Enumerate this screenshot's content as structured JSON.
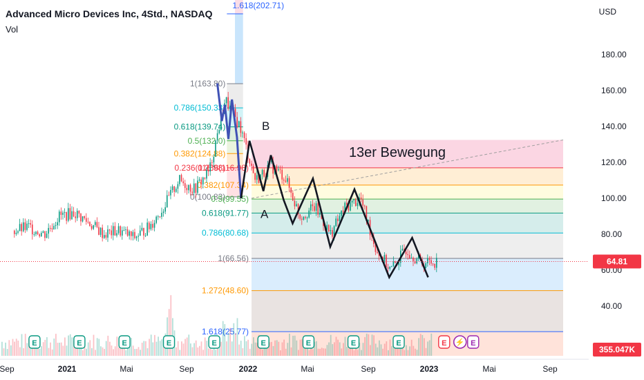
{
  "header": {
    "symbol_title": "Advanced Micro Devices Inc, 4Std., NASDAQ",
    "volume_label": "Vol",
    "currency": "USD"
  },
  "chart_data": {
    "type": "candlestick",
    "title": "Advanced Micro Devices Inc, 4Std., NASDAQ",
    "y_ticks": [
      40,
      60,
      80,
      100,
      120,
      140,
      160,
      180
    ],
    "y_tick_labels": [
      "40.00",
      "60.00",
      "80.00",
      "100.00",
      "120.00",
      "140.00",
      "160.00",
      "180.00"
    ],
    "x_tick_labels": [
      "Sep",
      "2021",
      "Mai",
      "Sep",
      "2022",
      "Mai",
      "Sep",
      "2023",
      "Mai",
      "Sep"
    ],
    "last_price": 64.81,
    "last_price_label": "64.81",
    "volume_label": "355.047K",
    "grid": false,
    "annotations": [
      "13er Bewegung",
      "A",
      "B"
    ],
    "price_path": [
      [
        "2020-09",
        82
      ],
      [
        "2020-10",
        84
      ],
      [
        "2020-11",
        80
      ],
      [
        "2020-12",
        90
      ],
      [
        "2021-01",
        92
      ],
      [
        "2021-02",
        86
      ],
      [
        "2021-03",
        80
      ],
      [
        "2021-04",
        82
      ],
      [
        "2021-05",
        78
      ],
      [
        "2021-06",
        84
      ],
      [
        "2021-07",
        95
      ],
      [
        "2021-08",
        110
      ],
      [
        "2021-09",
        105
      ],
      [
        "2021-10",
        115
      ],
      [
        "2021-11",
        155
      ],
      [
        "2021-12",
        140
      ],
      [
        "2022-01",
        110
      ],
      [
        "2022-02",
        118
      ],
      [
        "2022-03",
        112
      ],
      [
        "2022-04",
        90
      ],
      [
        "2022-05",
        95
      ],
      [
        "2022-06",
        80
      ],
      [
        "2022-07",
        95
      ],
      [
        "2022-08",
        100
      ],
      [
        "2022-09",
        72
      ],
      [
        "2022-10",
        60
      ],
      [
        "2022-11",
        72
      ],
      [
        "2022-12",
        64
      ],
      [
        "2023-01",
        64.81
      ]
    ],
    "wave_path": [
      [
        "2021-11-01",
        164
      ],
      [
        "2021-11-10",
        143
      ],
      [
        "2021-11-16",
        152
      ],
      [
        "2021-11-23",
        133
      ],
      [
        "2021-11-30",
        155
      ],
      [
        "2021-12-10",
        134
      ],
      [
        "2021-12-18",
        100
      ],
      [
        "2022-01-04",
        132
      ],
      [
        "2022-02-01",
        104
      ],
      [
        "2022-02-16",
        124
      ],
      [
        "2022-03-14",
        99
      ],
      [
        "2022-04-01",
        86
      ],
      [
        "2022-05-12",
        111
      ],
      [
        "2022-06-16",
        73
      ],
      [
        "2022-08-04",
        105
      ],
      [
        "2022-10-13",
        56
      ],
      [
        "2022-11-28",
        78
      ],
      [
        "2022-12-30",
        56
      ]
    ],
    "fib_left": [
      {
        "label": "1.618(202.71)",
        "value": 202.71,
        "color": "#2962ff"
      },
      {
        "label": "1(163.80)",
        "value": 163.8,
        "color": "#787b86"
      },
      {
        "label": "0.786(150.33)",
        "value": 150.33,
        "color": "#00bcd4"
      },
      {
        "label": "0.618(139.74)",
        "value": 139.74,
        "color": "#089981"
      },
      {
        "label": "0.5(132.0)",
        "value": 132.0,
        "color": "#4caf50"
      },
      {
        "label": "0.382(124.88)",
        "value": 124.88,
        "color": "#ff9800"
      },
      {
        "label": "0.236(116.98)",
        "value": 116.98,
        "color": "#f23645"
      },
      {
        "label": "0(100.83)",
        "value": 100.83,
        "color": "#787b86"
      }
    ],
    "fib_right": [
      {
        "label": "0.236(116.98)",
        "value": 116.98,
        "color": "#f23645"
      },
      {
        "label": "0.382(107.34)",
        "value": 107.34,
        "color": "#ff9800"
      },
      {
        "label": "0.5(99.55)",
        "value": 99.55,
        "color": "#4caf50"
      },
      {
        "label": "0.618(91.77)",
        "value": 91.77,
        "color": "#089981"
      },
      {
        "label": "0.786(80.68)",
        "value": 80.68,
        "color": "#00bcd4"
      },
      {
        "label": "1(66.56)",
        "value": 66.56,
        "color": "#787b86"
      },
      {
        "label": "1.272(48.60)",
        "value": 48.6,
        "color": "#ff9800"
      },
      {
        "label": "1.618(25.77)",
        "value": 25.77,
        "color": "#2962ff"
      }
    ],
    "earnings_markers": [
      "E",
      "E",
      "E",
      "E",
      "E",
      "E",
      "E",
      "E",
      "E",
      "E",
      "E"
    ]
  },
  "colors": {
    "up": "#089981",
    "down": "#f23645",
    "price_tag": "#f23645",
    "wave": "#131722"
  }
}
